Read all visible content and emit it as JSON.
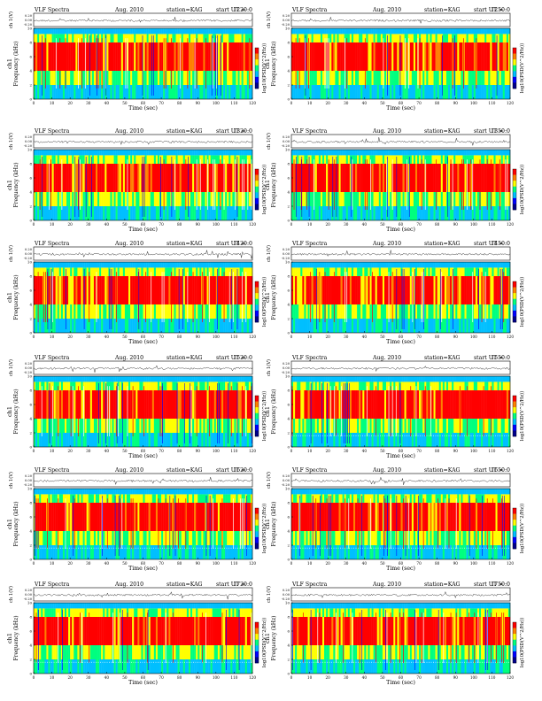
{
  "page": {
    "colors": {
      "background": "#ffffff",
      "axis": "#000000",
      "trace": "#222222"
    }
  },
  "chart_data": [
    {
      "type": "heatmap",
      "title_left": "VLF Spectra",
      "month": "Aug. 2010",
      "station": "station=KAG",
      "start_label": "start UT =",
      "start_ut": "1220:0",
      "top_ylabel": "ch 1(V)",
      "top_yticks": [
        "0.20",
        "0.00",
        "-0.20"
      ],
      "ylabel": "Frequency (kHz)",
      "channel": "ch1",
      "xlabel": "Time (sec)",
      "xticks": [
        "0",
        "10",
        "20",
        "30",
        "40",
        "50",
        "60",
        "70",
        "80",
        "90",
        "100",
        "110",
        "120"
      ],
      "xlim": [
        0,
        120
      ],
      "yticks": [
        "0",
        "2",
        "4",
        "6",
        "8",
        "10"
      ],
      "ylim": [
        0,
        10
      ],
      "colorbar_label": "log10(PSD(V^2/Hz))",
      "colorscale": [
        "#00008b",
        "#0000ff",
        "#00bfff",
        "#00ff7f",
        "#ffff00",
        "#ff7f00",
        "#ff0000"
      ]
    },
    {
      "type": "heatmap",
      "title_left": "VLF Spectra",
      "month": "Aug. 2010",
      "station": "station=KAG",
      "start_label": "start UT =",
      "start_ut": "1250:0",
      "top_ylabel": "ch 1(V)",
      "top_yticks": [
        "0.20",
        "0.00",
        "-0.20"
      ],
      "ylabel": "Frequency (kHz)",
      "channel": "ch1",
      "xlabel": "Time (sec)",
      "xticks": [
        "0",
        "10",
        "20",
        "30",
        "40",
        "50",
        "60",
        "70",
        "80",
        "90",
        "100",
        "110",
        "120"
      ],
      "xlim": [
        0,
        120
      ],
      "yticks": [
        "0",
        "2",
        "4",
        "6",
        "8",
        "10"
      ],
      "ylim": [
        0,
        10
      ],
      "colorbar_label": "log10(PSD(V^2/Hz))",
      "colorscale": [
        "#00008b",
        "#0000ff",
        "#00bfff",
        "#00ff7f",
        "#ffff00",
        "#ff7f00",
        "#ff0000"
      ]
    },
    {
      "type": "heatmap",
      "title_left": "VLF Spectra",
      "month": "Aug. 2010",
      "station": "station=KAG",
      "start_label": "start UT =",
      "start_ut": "1320:0",
      "top_ylabel": "ch 1(V)",
      "top_yticks": [
        "0.20",
        "0.00",
        "-0.20"
      ],
      "ylabel": "Frequency (kHz)",
      "channel": "ch1",
      "xlabel": "Time (sec)",
      "xticks": [
        "0",
        "10",
        "20",
        "30",
        "40",
        "50",
        "60",
        "70",
        "80",
        "90",
        "100",
        "110",
        "120"
      ],
      "xlim": [
        0,
        120
      ],
      "yticks": [
        "0",
        "2",
        "4",
        "6",
        "8",
        "10"
      ],
      "ylim": [
        0,
        10
      ],
      "colorbar_label": "log10(PSD(V^2/Hz))",
      "colorscale": [
        "#00008b",
        "#0000ff",
        "#00bfff",
        "#00ff7f",
        "#ffff00",
        "#ff7f00",
        "#ff0000"
      ]
    },
    {
      "type": "heatmap",
      "title_left": "VLF Spectra",
      "month": "Aug. 2010",
      "station": "station=KAG",
      "start_label": "start UT =",
      "start_ut": "1350:0",
      "top_ylabel": "ch 1(V)",
      "top_yticks": [
        "0.20",
        "0.00",
        "-0.20"
      ],
      "ylabel": "Frequency (kHz)",
      "channel": "ch1",
      "xlabel": "Time (sec)",
      "xticks": [
        "0",
        "10",
        "20",
        "30",
        "40",
        "50",
        "60",
        "70",
        "80",
        "90",
        "100",
        "110",
        "120"
      ],
      "xlim": [
        0,
        120
      ],
      "yticks": [
        "0",
        "2",
        "4",
        "6",
        "8",
        "10"
      ],
      "ylim": [
        0,
        10
      ],
      "colorbar_label": "log10(PSD(V^2/Hz))",
      "colorscale": [
        "#00008b",
        "#0000ff",
        "#00bfff",
        "#00ff7f",
        "#ffff00",
        "#ff7f00",
        "#ff0000"
      ]
    },
    {
      "type": "heatmap",
      "title_left": "VLF Spectra",
      "month": "Aug. 2010",
      "station": "station=KAG",
      "start_label": "start UT =",
      "start_ut": "1420:0",
      "top_ylabel": "ch 1(V)",
      "top_yticks": [
        "0.20",
        "0.00",
        "-0.20"
      ],
      "ylabel": "Frequency (kHz)",
      "channel": "ch1",
      "xlabel": "Time (sec)",
      "xticks": [
        "0",
        "10",
        "20",
        "30",
        "40",
        "50",
        "60",
        "70",
        "80",
        "90",
        "100",
        "110",
        "120"
      ],
      "xlim": [
        0,
        120
      ],
      "yticks": [
        "0",
        "2",
        "4",
        "6",
        "8",
        "10"
      ],
      "ylim": [
        0,
        10
      ],
      "colorbar_label": "log10(PSD(V^2/Hz))",
      "colorscale": [
        "#00008b",
        "#0000ff",
        "#00bfff",
        "#00ff7f",
        "#ffff00",
        "#ff7f00",
        "#ff0000"
      ]
    },
    {
      "type": "heatmap",
      "title_left": "VLF Spectra",
      "month": "Aug. 2010",
      "station": "station=KAG",
      "start_label": "start UT =",
      "start_ut": "1450:0",
      "top_ylabel": "ch 1(V)",
      "top_yticks": [
        "0.20",
        "0.00",
        "-0.20"
      ],
      "ylabel": "Frequency (kHz)",
      "channel": "ch1",
      "xlabel": "Time (sec)",
      "xticks": [
        "0",
        "10",
        "20",
        "30",
        "40",
        "50",
        "60",
        "70",
        "80",
        "90",
        "100",
        "110",
        "120"
      ],
      "xlim": [
        0,
        120
      ],
      "yticks": [
        "0",
        "2",
        "4",
        "6",
        "8",
        "10"
      ],
      "ylim": [
        0,
        10
      ],
      "colorbar_label": "log10(PSD(V^2/Hz))",
      "colorscale": [
        "#00008b",
        "#0000ff",
        "#00bfff",
        "#00ff7f",
        "#ffff00",
        "#ff7f00",
        "#ff0000"
      ]
    },
    {
      "type": "heatmap",
      "title_left": "VLF Spectra",
      "month": "Aug. 2010",
      "station": "station=KAG",
      "start_label": "start UT =",
      "start_ut": "1520:0",
      "top_ylabel": "ch 1(V)",
      "top_yticks": [
        "0.20",
        "0.00",
        "-0.20"
      ],
      "ylabel": "Frequency (kHz)",
      "channel": "ch1",
      "xlabel": "Time (sec)",
      "xticks": [
        "0",
        "10",
        "20",
        "30",
        "40",
        "50",
        "60",
        "70",
        "80",
        "90",
        "100",
        "110",
        "120"
      ],
      "xlim": [
        0,
        120
      ],
      "yticks": [
        "0",
        "2",
        "4",
        "6",
        "8",
        "10"
      ],
      "ylim": [
        0,
        10
      ],
      "colorbar_label": "log10(PSD(V^2/Hz))",
      "colorscale": [
        "#00008b",
        "#0000ff",
        "#00bfff",
        "#00ff7f",
        "#ffff00",
        "#ff7f00",
        "#ff0000"
      ]
    },
    {
      "type": "heatmap",
      "title_left": "VLF Spectra",
      "month": "Aug. 2010",
      "station": "station=KAG",
      "start_label": "start UT =",
      "start_ut": "1550:0",
      "top_ylabel": "ch 1(V)",
      "top_yticks": [
        "0.20",
        "0.00",
        "-0.20"
      ],
      "ylabel": "Frequency (kHz)",
      "channel": "ch1",
      "xlabel": "Time (sec)",
      "xticks": [
        "0",
        "10",
        "20",
        "30",
        "40",
        "50",
        "60",
        "70",
        "80",
        "90",
        "100",
        "110",
        "120"
      ],
      "xlim": [
        0,
        120
      ],
      "yticks": [
        "0",
        "2",
        "4",
        "6",
        "8",
        "10"
      ],
      "ylim": [
        0,
        10
      ],
      "colorbar_label": "log10(PSD(V^2/Hz))",
      "colorscale": [
        "#00008b",
        "#0000ff",
        "#00bfff",
        "#00ff7f",
        "#ffff00",
        "#ff7f00",
        "#ff0000"
      ]
    },
    {
      "type": "heatmap",
      "title_left": "VLF Spectra",
      "month": "Aug. 2010",
      "station": "station=KAG",
      "start_label": "start UT =",
      "start_ut": "1620:0",
      "top_ylabel": "ch 1(V)",
      "top_yticks": [
        "0.20",
        "0.00",
        "-0.20"
      ],
      "ylabel": "Frequency (kHz)",
      "channel": "ch1",
      "xlabel": "Time (sec)",
      "xticks": [
        "0",
        "10",
        "20",
        "30",
        "40",
        "50",
        "60",
        "70",
        "80",
        "90",
        "100",
        "110",
        "120"
      ],
      "xlim": [
        0,
        120
      ],
      "yticks": [
        "0",
        "2",
        "4",
        "6",
        "8",
        "10"
      ],
      "ylim": [
        0,
        10
      ],
      "colorbar_label": "log10(PSD(V^2/Hz))",
      "colorscale": [
        "#00008b",
        "#0000ff",
        "#00bfff",
        "#00ff7f",
        "#ffff00",
        "#ff7f00",
        "#ff0000"
      ]
    },
    {
      "type": "heatmap",
      "title_left": "VLF Spectra",
      "month": "Aug. 2010",
      "station": "station=KAG",
      "start_label": "start UT =",
      "start_ut": "1650:0",
      "top_ylabel": "ch 1(V)",
      "top_yticks": [
        "0.20",
        "0.00",
        "-0.20"
      ],
      "ylabel": "Frequency (kHz)",
      "channel": "ch1",
      "xlabel": "Time (sec)",
      "xticks": [
        "0",
        "10",
        "20",
        "30",
        "40",
        "50",
        "60",
        "70",
        "80",
        "90",
        "100",
        "110",
        "120"
      ],
      "xlim": [
        0,
        120
      ],
      "yticks": [
        "0",
        "2",
        "4",
        "6",
        "8",
        "10"
      ],
      "ylim": [
        0,
        10
      ],
      "colorbar_label": "log10(PSD(V^2/Hz))",
      "colorscale": [
        "#00008b",
        "#0000ff",
        "#00bfff",
        "#00ff7f",
        "#ffff00",
        "#ff7f00",
        "#ff0000"
      ]
    },
    {
      "type": "heatmap",
      "title_left": "VLF Spectra",
      "month": "Aug. 2010",
      "station": "station=KAG",
      "start_label": "start UT =",
      "start_ut": "1720:0",
      "top_ylabel": "ch 1(V)",
      "top_yticks": [
        "0.20",
        "0.00",
        "-0.20"
      ],
      "ylabel": "Frequency (kHz)",
      "channel": "ch1",
      "xlabel": "Time (sec)",
      "xticks": [
        "0",
        "10",
        "20",
        "30",
        "40",
        "50",
        "60",
        "70",
        "80",
        "90",
        "100",
        "110",
        "120"
      ],
      "xlim": [
        0,
        120
      ],
      "yticks": [
        "0",
        "2",
        "4",
        "6",
        "8",
        "10"
      ],
      "ylim": [
        0,
        10
      ],
      "colorbar_label": "log10(PSD(V^2/Hz))",
      "colorscale": [
        "#00008b",
        "#0000ff",
        "#00bfff",
        "#00ff7f",
        "#ffff00",
        "#ff7f00",
        "#ff0000"
      ]
    },
    {
      "type": "heatmap",
      "title_left": "VLF Spectra",
      "month": "Aug. 2010",
      "station": "station=KAG",
      "start_label": "start UT =",
      "start_ut": "1750:0",
      "top_ylabel": "ch 1(V)",
      "top_yticks": [
        "0.20",
        "0.00",
        "-0.20"
      ],
      "ylabel": "Frequency (kHz)",
      "channel": "ch1",
      "xlabel": "Time (sec)",
      "xticks": [
        "0",
        "10",
        "20",
        "30",
        "40",
        "50",
        "60",
        "70",
        "80",
        "90",
        "100",
        "110",
        "120"
      ],
      "xlim": [
        0,
        120
      ],
      "yticks": [
        "0",
        "2",
        "4",
        "6",
        "8",
        "10"
      ],
      "ylim": [
        0,
        10
      ],
      "colorbar_label": "log10(PSD(V^2/Hz))",
      "colorscale": [
        "#00008b",
        "#0000ff",
        "#00bfff",
        "#00ff7f",
        "#ffff00",
        "#ff7f00",
        "#ff0000"
      ]
    }
  ]
}
